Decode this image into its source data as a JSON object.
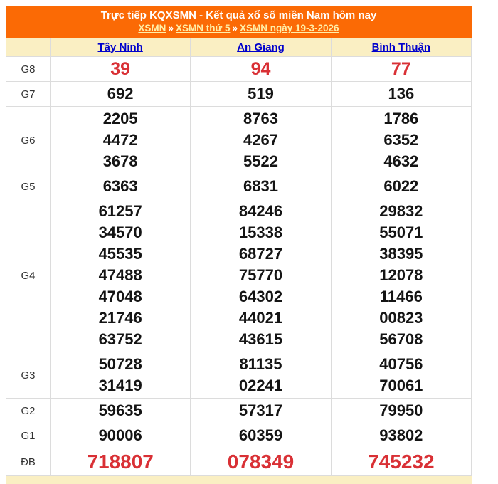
{
  "colors": {
    "header_bg": "#fb6a05",
    "header_text": "#ffffff",
    "breadcrumb_link": "#ffefa8",
    "panel_cream": "#faefc3",
    "province_link_blue": "#0000cc",
    "number_black": "#141414",
    "highlight_red": "#d93035",
    "border_gray": "#dcdcdc"
  },
  "header": {
    "title": "Trực tiếp KQXSMN - Kết quả xổ số miền Nam hôm nay",
    "separator": "»",
    "breadcrumb": [
      {
        "label": "XSMN"
      },
      {
        "label": "XSMN thứ 5"
      },
      {
        "label": "XSMN ngày 19-3-2026"
      }
    ]
  },
  "table": {
    "corner_label": "",
    "provinces": [
      "Tây Ninh",
      "An Giang",
      "Bình Thuận"
    ],
    "rows": [
      {
        "label": "G8",
        "style": "red-medium",
        "columns": [
          [
            "39"
          ],
          [
            "94"
          ],
          [
            "77"
          ]
        ]
      },
      {
        "label": "G7",
        "style": "normal",
        "columns": [
          [
            "692"
          ],
          [
            "519"
          ],
          [
            "136"
          ]
        ]
      },
      {
        "label": "G6",
        "style": "normal",
        "columns": [
          [
            "2205",
            "4472",
            "3678"
          ],
          [
            "8763",
            "4267",
            "5522"
          ],
          [
            "1786",
            "6352",
            "4632"
          ]
        ]
      },
      {
        "label": "G5",
        "style": "normal",
        "columns": [
          [
            "6363"
          ],
          [
            "6831"
          ],
          [
            "6022"
          ]
        ]
      },
      {
        "label": "G4",
        "style": "normal",
        "columns": [
          [
            "61257",
            "34570",
            "45535",
            "47488",
            "47048",
            "21746",
            "63752"
          ],
          [
            "84246",
            "15338",
            "68727",
            "75770",
            "64302",
            "44021",
            "43615"
          ],
          [
            "29832",
            "55071",
            "38395",
            "12078",
            "11466",
            "00823",
            "56708"
          ]
        ]
      },
      {
        "label": "G3",
        "style": "normal",
        "columns": [
          [
            "50728",
            "31419"
          ],
          [
            "81135",
            "02241"
          ],
          [
            "40756",
            "70061"
          ]
        ]
      },
      {
        "label": "G2",
        "style": "normal",
        "columns": [
          [
            "59635"
          ],
          [
            "57317"
          ],
          [
            "79950"
          ]
        ]
      },
      {
        "label": "G1",
        "style": "normal",
        "columns": [
          [
            "90006"
          ],
          [
            "60359"
          ],
          [
            "93802"
          ]
        ]
      },
      {
        "label": "ĐB",
        "style": "red-large",
        "columns": [
          [
            "718807"
          ],
          [
            "078349"
          ],
          [
            "745232"
          ]
        ]
      }
    ]
  }
}
